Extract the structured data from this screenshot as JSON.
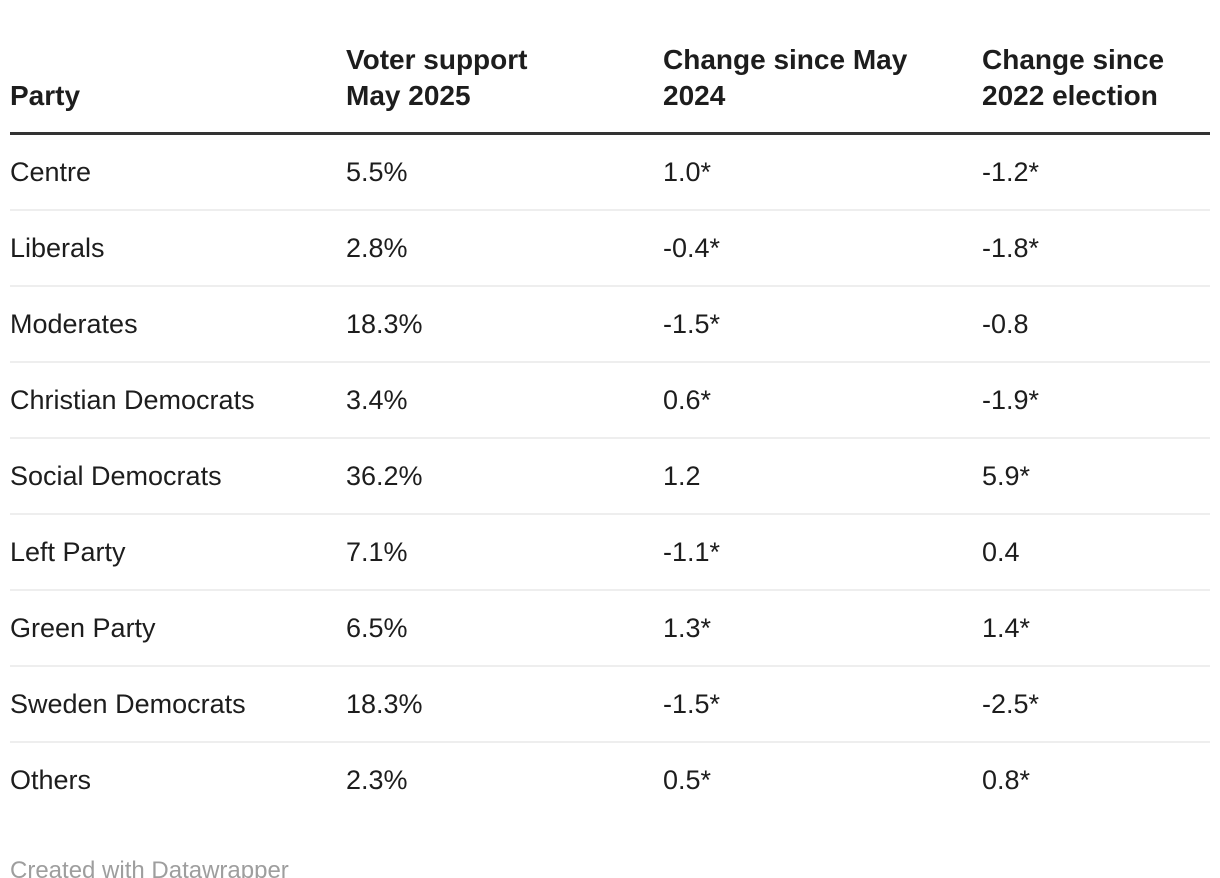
{
  "chart_data": {
    "type": "table",
    "title": "",
    "columns": [
      "Party",
      "Voter support May 2025",
      "Change since May 2024",
      "Change since 2022 election"
    ],
    "rows": [
      [
        "Centre",
        "5.5%",
        "1.0*",
        "-1.2*"
      ],
      [
        "Liberals",
        "2.8%",
        "-0.4*",
        "-1.8*"
      ],
      [
        "Moderates",
        "18.3%",
        "-1.5*",
        "-0.8"
      ],
      [
        "Christian Democrats",
        "3.4%",
        "0.6*",
        "-1.9*"
      ],
      [
        "Social Democrats",
        "36.2%",
        "1.2",
        "5.9*"
      ],
      [
        "Left Party",
        "7.1%",
        "-1.1*",
        "0.4"
      ],
      [
        "Green Party",
        "6.5%",
        "1.3*",
        "1.4*"
      ],
      [
        "Sweden Democrats",
        "18.3%",
        "-1.5*",
        "-2.5*"
      ],
      [
        "Others",
        "2.3%",
        "0.5*",
        "0.8*"
      ]
    ]
  },
  "table": {
    "columns": [
      {
        "label": "Party",
        "lines": [
          "Party"
        ]
      },
      {
        "label": "Voter support May 2025",
        "lines": [
          "Voter support",
          "May 2025"
        ]
      },
      {
        "label": "Change since May 2024",
        "lines": [
          "Change since May",
          "2024"
        ]
      },
      {
        "label": "Change since 2022 election",
        "lines": [
          "Change since",
          "2022 election"
        ]
      }
    ]
  },
  "footer": {
    "attribution": "Created with Datawrapper"
  },
  "colors": {
    "text": "#1d1d1d",
    "header_rule": "#333333",
    "row_divider": "#eeeeee",
    "footer_text": "#9e9e9e",
    "background": "#ffffff"
  }
}
